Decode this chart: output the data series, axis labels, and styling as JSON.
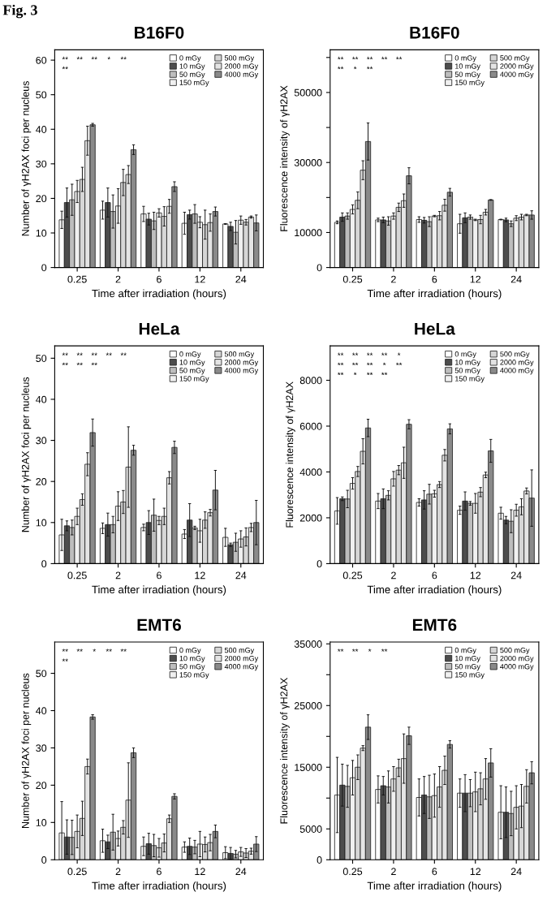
{
  "chart_data": [
    {
      "type": "bar",
      "title": "B16F0",
      "xlabel": "Time after irradiation (hours)",
      "ylabel": "Number of γH2AX foci per nucleus",
      "categories": [
        "0.25",
        "2",
        "6",
        "12",
        "24"
      ],
      "ylim": [
        0,
        63
      ],
      "yticks": [
        0,
        10,
        20,
        30,
        40,
        50,
        60
      ],
      "legend": "top right",
      "grid": false,
      "annotations": [
        "Fig. 3",
        "**",
        "**",
        "**",
        "*",
        "**",
        "**"
      ],
      "series": [
        {
          "name": "0 mGy",
          "color": "#ffffff",
          "values": [
            13.8,
            16.6,
            15.5,
            12.8,
            12.6
          ],
          "errors": [
            2.5,
            2.6,
            2.2,
            3.2,
            0.1
          ]
        },
        {
          "name": "10 mGy",
          "color": "#4d4d4d",
          "values": [
            18.8,
            18.8,
            14,
            15.3,
            11.9
          ],
          "errors": [
            4.2,
            4.2,
            1.7,
            1.3,
            1.2
          ]
        },
        {
          "name": "50 mGy",
          "color": "#bdbdbd",
          "values": [
            19.6,
            16.2,
            13.5,
            15.5,
            10.2
          ],
          "errors": [
            4.5,
            4.8,
            2.5,
            2.7,
            3.4
          ]
        },
        {
          "name": "150 mGy",
          "color": "#f0f0f0",
          "values": [
            22,
            17.8,
            15.8,
            13.1,
            13.7
          ],
          "errors": [
            3.2,
            5,
            1.2,
            1.6,
            1.2
          ]
        },
        {
          "name": "500 mGy",
          "color": "#d6d6d6",
          "values": [
            25.5,
            24.6,
            14.8,
            12.4,
            13.1
          ],
          "errors": [
            3.5,
            3.8,
            2.8,
            4.2,
            0.8
          ]
        },
        {
          "name": "2000 mGy",
          "color": "#e4e4e4",
          "values": [
            36.7,
            26.9,
            17.7,
            13,
            14.6
          ],
          "errors": [
            4.2,
            2.6,
            2,
            2.5,
            0.3
          ]
        },
        {
          "name": "4000 mGy",
          "color": "#8a8a8a",
          "values": [
            41.3,
            34.1,
            23.4,
            16.2,
            12.9
          ],
          "errors": [
            0.4,
            1.4,
            1.4,
            1.3,
            2.3
          ]
        }
      ]
    },
    {
      "type": "bar",
      "title": "B16F0",
      "xlabel": "Time after irradiation (hours)",
      "ylabel": "Fluorescence intensity of γH2AX",
      "categories": [
        "0.25",
        "2",
        "6",
        "12",
        "24"
      ],
      "ylim": [
        0,
        62200
      ],
      "yticks": [
        0,
        10000,
        {
          "value": 20000,
          "label": null
        },
        30000,
        {
          "value": 40000,
          "label": null
        },
        50000,
        {
          "value": 60000,
          "label": null
        }
      ],
      "legend": "top right",
      "grid": false,
      "annotations": [
        "**",
        "**",
        "**",
        "**",
        "**",
        "**",
        "*",
        "**"
      ],
      "series": [
        {
          "name": "0 mGy",
          "color": "#ffffff",
          "values": [
            12900,
            13600,
            13700,
            12500,
            13700
          ],
          "errors": [
            400,
            500,
            800,
            2700,
            100
          ]
        },
        {
          "name": "10 mGy",
          "color": "#4d4d4d",
          "values": [
            14400,
            13600,
            13500,
            14200,
            13600
          ],
          "errors": [
            1200,
            800,
            800,
            1400,
            500
          ]
        },
        {
          "name": "50 mGy",
          "color": "#bdbdbd",
          "values": [
            14700,
            13300,
            13100,
            14400,
            12500
          ],
          "errors": [
            900,
            1200,
            1400,
            600,
            800
          ]
        },
        {
          "name": "150 mGy",
          "color": "#f0f0f0",
          "values": [
            16600,
            14700,
            14700,
            13600,
            14100
          ],
          "errors": [
            1300,
            900,
            200,
            200,
            700
          ]
        },
        {
          "name": "500 mGy",
          "color": "#d6d6d6",
          "values": [
            19200,
            17200,
            14800,
            13700,
            14400
          ],
          "errors": [
            2400,
            1200,
            1200,
            1200,
            800
          ]
        },
        {
          "name": "2000 mGy",
          "color": "#e4e4e4",
          "values": [
            27800,
            19100,
            17800,
            15800,
            15000
          ],
          "errors": [
            2700,
            1900,
            1700,
            800,
            200
          ]
        },
        {
          "name": "4000 mGy",
          "color": "#8a8a8a",
          "values": [
            36000,
            26200,
            21500,
            19300,
            15000
          ],
          "errors": [
            5300,
            2300,
            1100,
            100,
            1200
          ]
        }
      ]
    },
    {
      "type": "bar",
      "title": "HeLa",
      "xlabel": "Time after irradiation (hours)",
      "ylabel": "Number of γH2AX foci per nucleus",
      "categories": [
        "0.25",
        "2",
        "6",
        "12",
        "24"
      ],
      "ylim": [
        0,
        53
      ],
      "yticks": [
        0,
        10,
        20,
        30,
        40,
        50
      ],
      "legend": "top right",
      "grid": false,
      "annotations": [
        "**",
        "**",
        "**",
        "**",
        "**",
        "**",
        "**",
        "**"
      ],
      "series": [
        {
          "name": "0 mGy",
          "color": "#ffffff",
          "values": [
            7,
            8.6,
            8.8,
            7.2,
            6.4
          ],
          "errors": [
            3.8,
            1.3,
            0.8,
            1.1,
            2.2
          ]
        },
        {
          "name": "10 mGy",
          "color": "#4d4d4d",
          "values": [
            9.2,
            9.5,
            10,
            10.6,
            4.6
          ],
          "errors": [
            1.2,
            2.8,
            2.9,
            4,
            0.4
          ]
        },
        {
          "name": "50 mGy",
          "color": "#bdbdbd",
          "values": [
            8.8,
            9.5,
            11.8,
            8.7,
            5.2
          ],
          "errors": [
            1.8,
            2,
            3.9,
            0.4,
            2.2
          ]
        },
        {
          "name": "150 mGy",
          "color": "#f0f0f0",
          "values": [
            11.5,
            14,
            10.5,
            8,
            6
          ],
          "errors": [
            2,
            3.5,
            1,
            2.8,
            2
          ]
        },
        {
          "name": "500 mGy",
          "color": "#d6d6d6",
          "values": [
            15.6,
            15,
            11.5,
            10.6,
            6.5
          ],
          "errors": [
            1.4,
            2.8,
            2,
            2,
            2.2
          ]
        },
        {
          "name": "2000 mGy",
          "color": "#e4e4e4",
          "values": [
            24.2,
            23.5,
            20.9,
            12.4,
            8.8
          ],
          "errors": [
            2.8,
            9.8,
            1.5,
            0.8,
            1
          ]
        },
        {
          "name": "4000 mGy",
          "color": "#8a8a8a",
          "values": [
            31.9,
            27.6,
            28.3,
            17.9,
            10
          ],
          "errors": [
            3.3,
            1.2,
            1.5,
            4.8,
            5.4
          ]
        }
      ]
    },
    {
      "type": "bar",
      "title": "HeLa",
      "xlabel": "Time after irradiation (hours)",
      "ylabel": "Fluorescence intensity of γH2AX",
      "categories": [
        "0.25",
        "2",
        "6",
        "12",
        "24"
      ],
      "ylim": [
        0,
        9500
      ],
      "yticks": [
        0,
        2000,
        4000,
        6000,
        8000
      ],
      "legend": "top right",
      "grid": false,
      "annotations": [
        "**",
        "**",
        "**",
        "**",
        "*",
        "**",
        "**",
        "**",
        "*",
        "**",
        "**",
        "*",
        "**",
        "**"
      ],
      "series": [
        {
          "name": "0 mGy",
          "color": "#ffffff",
          "values": [
            2300,
            2730,
            2670,
            2330,
            2200
          ],
          "errors": [
            580,
            330,
            160,
            180,
            260
          ]
        },
        {
          "name": "10 mGy",
          "color": "#4d4d4d",
          "values": [
            2830,
            2830,
            2780,
            2730,
            1900
          ],
          "errors": [
            80,
            430,
            400,
            400,
            160
          ]
        },
        {
          "name": "50 mGy",
          "color": "#bdbdbd",
          "values": [
            2820,
            2980,
            3030,
            2630,
            1850
          ],
          "errors": [
            380,
            200,
            430,
            80,
            500
          ]
        },
        {
          "name": "150 mGy",
          "color": "#f0f0f0",
          "values": [
            3500,
            3700,
            3050,
            2630,
            2330
          ],
          "errors": [
            250,
            320,
            150,
            430,
            260
          ]
        },
        {
          "name": "500 mGy",
          "color": "#d6d6d6",
          "values": [
            4020,
            4080,
            3450,
            3120,
            2480
          ],
          "errors": [
            220,
            200,
            130,
            200,
            350
          ]
        },
        {
          "name": "2000 mGy",
          "color": "#e4e4e4",
          "values": [
            4900,
            4400,
            4730,
            3870,
            3170
          ],
          "errors": [
            550,
            680,
            250,
            120,
            130
          ]
        },
        {
          "name": "4000 mGy",
          "color": "#8a8a8a",
          "values": [
            5920,
            6080,
            5880,
            4920,
            2860
          ],
          "errors": [
            380,
            200,
            220,
            500,
            1230
          ]
        }
      ]
    },
    {
      "type": "bar",
      "title": "EMT6",
      "xlabel": "Time after irradiation (hours)",
      "ylabel": "Number of γH2AX foci per nucleus",
      "categories": [
        "0.25",
        "2",
        "6",
        "12",
        "24"
      ],
      "ylim": [
        0,
        58.4
      ],
      "yticks": [
        0,
        10,
        20,
        30,
        40,
        50
      ],
      "legend": "top right",
      "grid": false,
      "annotations": [
        "**",
        "**",
        "*",
        "**",
        "**",
        "**"
      ],
      "series": [
        {
          "name": "0 mGy",
          "color": "#ffffff",
          "values": [
            7.2,
            5.1,
            3.6,
            3.4,
            1.9
          ],
          "errors": [
            8.4,
            3.1,
            2.5,
            1.4,
            1.6
          ]
        },
        {
          "name": "10 mGy",
          "color": "#4d4d4d",
          "values": [
            6.1,
            4.8,
            4.3,
            3.6,
            1.7
          ],
          "errors": [
            4.6,
            1.8,
            2.8,
            2.2,
            1.6
          ]
        },
        {
          "name": "50 mGy",
          "color": "#bdbdbd",
          "values": [
            6,
            7.4,
            3.8,
            3.4,
            1.5
          ],
          "errors": [
            4.6,
            4.8,
            3,
            1.8,
            1
          ]
        },
        {
          "name": "150 mGy",
          "color": "#f0f0f0",
          "values": [
            7.6,
            5.7,
            3.2,
            4.2,
            2.1
          ],
          "errors": [
            4.4,
            2,
            2.5,
            3.4,
            1.2
          ]
        },
        {
          "name": "500 mGy",
          "color": "#d6d6d6",
          "values": [
            11.1,
            8.7,
            4.5,
            4.1,
            1.8
          ],
          "errors": [
            4.6,
            1.8,
            2.4,
            2,
            1.2
          ]
        },
        {
          "name": "2000 mGy",
          "color": "#e4e4e4",
          "values": [
            25,
            16,
            11,
            4.6,
            2.3
          ],
          "errors": [
            2,
            10,
            1,
            2.2,
            0.8
          ]
        },
        {
          "name": "4000 mGy",
          "color": "#8a8a8a",
          "values": [
            38.3,
            28.7,
            17,
            7.6,
            4.2
          ],
          "errors": [
            0.6,
            1.3,
            0.7,
            1.7,
            2
          ]
        }
      ]
    },
    {
      "type": "bar",
      "title": "EMT6",
      "xlabel": "Time after irradiation (hours)",
      "ylabel": "Fluorescence intensity of γH2AX",
      "categories": [
        "0.25",
        "2",
        "6",
        "12",
        "24"
      ],
      "ylim": [
        0,
        35300
      ],
      "yticks": [
        0,
        5000,
        {
          "value": 10000,
          "label": null
        },
        15000,
        {
          "value": 20000,
          "label": null
        },
        25000,
        {
          "value": 30000,
          "label": null
        },
        35000
      ],
      "legend": "top right",
      "grid": false,
      "annotations": [
        "**",
        "**",
        "*",
        "**"
      ],
      "series": [
        {
          "name": "0 mGy",
          "color": "#ffffff",
          "values": [
            10500,
            11400,
            10100,
            10800,
            7700
          ],
          "errors": [
            6100,
            2200,
            3000,
            2300,
            4300
          ]
        },
        {
          "name": "10 mGy",
          "color": "#4d4d4d",
          "values": [
            12100,
            12000,
            10500,
            10800,
            7700
          ],
          "errors": [
            3400,
            1500,
            3000,
            3000,
            4100
          ]
        },
        {
          "name": "50 mGy",
          "color": "#bdbdbd",
          "values": [
            11900,
            11800,
            10200,
            10800,
            7500
          ],
          "errors": [
            3400,
            2600,
            3500,
            2200,
            3600
          ]
        },
        {
          "name": "150 mGy",
          "color": "#f0f0f0",
          "values": [
            13300,
            13100,
            10400,
            11000,
            8500
          ],
          "errors": [
            2800,
            2000,
            3500,
            3200,
            3500
          ]
        },
        {
          "name": "500 mGy",
          "color": "#d6d6d6",
          "values": [
            15000,
            14900,
            11800,
            11500,
            8700
          ],
          "errors": [
            2000,
            1400,
            3300,
            2600,
            3500
          ]
        },
        {
          "name": "2000 mGy",
          "color": "#e4e4e4",
          "values": [
            18100,
            16400,
            14500,
            13100,
            11900
          ],
          "errors": [
            400,
            4000,
            2300,
            3300,
            2700
          ]
        },
        {
          "name": "4000 mGy",
          "color": "#8a8a8a",
          "values": [
            21500,
            20100,
            18700,
            15700,
            14100
          ],
          "errors": [
            2000,
            1400,
            600,
            2300,
            1800
          ]
        }
      ]
    }
  ]
}
